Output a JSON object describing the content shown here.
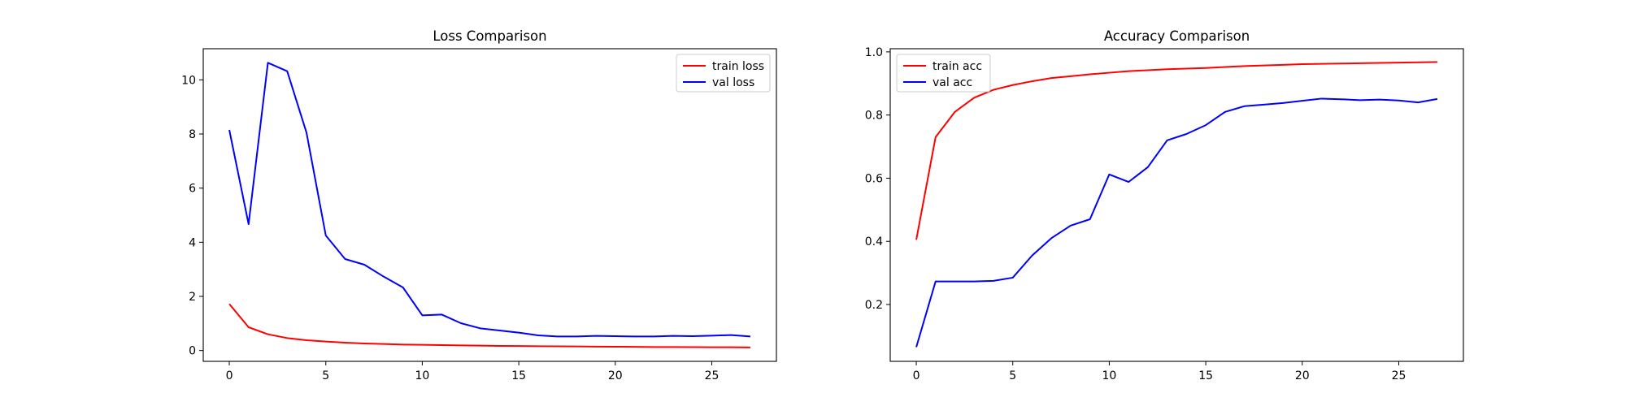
{
  "chart_data": [
    {
      "type": "line",
      "title": "Loss Comparison",
      "xlabel": "",
      "ylabel": "",
      "xlim": [
        -1.35,
        28.35
      ],
      "ylim": [
        -0.4,
        11.15
      ],
      "xticks": [
        0,
        5,
        10,
        15,
        20,
        25
      ],
      "yticks": [
        0,
        2,
        4,
        6,
        8,
        10
      ],
      "legend_position": "top-right",
      "grid": false,
      "x": [
        0,
        1,
        2,
        3,
        4,
        5,
        6,
        7,
        8,
        9,
        10,
        11,
        12,
        13,
        14,
        15,
        16,
        17,
        18,
        19,
        20,
        21,
        22,
        23,
        24,
        25,
        26,
        27
      ],
      "series": [
        {
          "name": "train loss",
          "color": "#ff0000",
          "values": [
            1.72,
            0.86,
            0.6,
            0.46,
            0.38,
            0.33,
            0.29,
            0.26,
            0.24,
            0.22,
            0.21,
            0.2,
            0.19,
            0.18,
            0.17,
            0.165,
            0.16,
            0.155,
            0.15,
            0.145,
            0.14,
            0.135,
            0.13,
            0.13,
            0.125,
            0.12,
            0.12,
            0.115
          ]
        },
        {
          "name": "val loss",
          "color": "#0000ff",
          "values": [
            8.15,
            4.67,
            10.63,
            10.32,
            8.05,
            4.25,
            3.38,
            3.17,
            2.73,
            2.33,
            1.3,
            1.33,
            1.01,
            0.82,
            0.74,
            0.66,
            0.56,
            0.52,
            0.52,
            0.54,
            0.53,
            0.52,
            0.52,
            0.54,
            0.53,
            0.55,
            0.57,
            0.52
          ]
        }
      ]
    },
    {
      "type": "line",
      "title": "Accuracy Comparison",
      "xlabel": "",
      "ylabel": "",
      "xlim": [
        -1.35,
        28.35
      ],
      "ylim": [
        0.02,
        1.01
      ],
      "xticks": [
        0,
        5,
        10,
        15,
        20,
        25
      ],
      "yticks": [
        0.2,
        0.4,
        0.6,
        0.8,
        1.0
      ],
      "ytick_labels": [
        "0.2",
        "0.4",
        "0.6",
        "0.8",
        "1.0"
      ],
      "legend_position": "top-left",
      "grid": false,
      "x": [
        0,
        1,
        2,
        3,
        4,
        5,
        6,
        7,
        8,
        9,
        10,
        11,
        12,
        13,
        14,
        15,
        16,
        17,
        18,
        19,
        20,
        21,
        22,
        23,
        24,
        25,
        26,
        27
      ],
      "series": [
        {
          "name": "train acc",
          "color": "#ff0000",
          "values": [
            0.405,
            0.73,
            0.81,
            0.855,
            0.88,
            0.895,
            0.907,
            0.917,
            0.923,
            0.929,
            0.934,
            0.939,
            0.942,
            0.945,
            0.947,
            0.949,
            0.952,
            0.955,
            0.957,
            0.959,
            0.961,
            0.962,
            0.963,
            0.964,
            0.965,
            0.966,
            0.967,
            0.968
          ]
        },
        {
          "name": "val acc",
          "color": "#0000ff",
          "values": [
            0.065,
            0.273,
            0.273,
            0.273,
            0.275,
            0.285,
            0.355,
            0.41,
            0.45,
            0.47,
            0.612,
            0.588,
            0.635,
            0.72,
            0.74,
            0.768,
            0.81,
            0.828,
            0.833,
            0.838,
            0.845,
            0.852,
            0.85,
            0.847,
            0.849,
            0.846,
            0.84,
            0.851
          ]
        }
      ]
    }
  ]
}
